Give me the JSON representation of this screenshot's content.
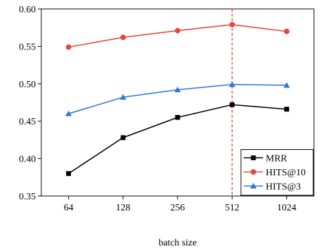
{
  "chart_data": {
    "type": "line",
    "xlabel": "batch size",
    "ylabel": "",
    "categories": [
      "64",
      "128",
      "256",
      "512",
      "1024"
    ],
    "ylim": [
      0.35,
      0.6
    ],
    "yticks": [
      "0.35",
      "0.40",
      "0.45",
      "0.50",
      "0.55",
      "0.60"
    ],
    "grid": false,
    "legend_position": "bottom-right",
    "reference_line": {
      "category": "512",
      "color": "#e8473c",
      "style": "dashed"
    },
    "series": [
      {
        "name": "MRR",
        "values": [
          0.38,
          0.428,
          0.455,
          0.472,
          0.466
        ],
        "color": "#000000",
        "marker": "square"
      },
      {
        "name": "HITS@10",
        "values": [
          0.549,
          0.562,
          0.571,
          0.579,
          0.57
        ],
        "color": "#e8473c",
        "marker": "circle"
      },
      {
        "name": "HITS@3",
        "values": [
          0.46,
          0.482,
          0.492,
          0.499,
          0.498
        ],
        "color": "#2f78d4",
        "marker": "triangle"
      }
    ]
  }
}
